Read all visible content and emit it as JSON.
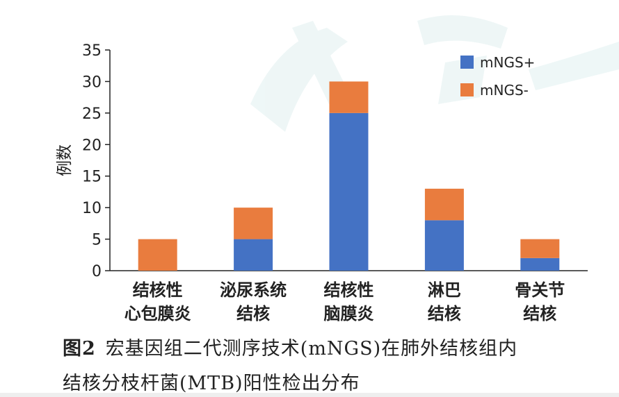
{
  "chart_data": {
    "type": "bar",
    "stacked": true,
    "categories": [
      [
        "结核性",
        "心包膜炎"
      ],
      [
        "泌尿系统",
        "结核"
      ],
      [
        "结核性",
        "脑膜炎"
      ],
      [
        "淋巴",
        "结核"
      ],
      [
        "骨关节",
        "结核"
      ]
    ],
    "series": [
      {
        "name": "mNGS+",
        "color": "#4472c4",
        "values": [
          0,
          5,
          25,
          8,
          2
        ]
      },
      {
        "name": "mNGS-",
        "color": "#e97c3e",
        "values": [
          5,
          5,
          5,
          5,
          3
        ]
      }
    ],
    "ylabel": "例数",
    "ylim": [
      0,
      35
    ],
    "yticks": [
      0,
      5,
      10,
      15,
      20,
      25,
      30,
      35
    ],
    "grid": false,
    "legend_position": "top-right"
  },
  "caption": {
    "label": "图2",
    "line1": "宏基因组二代测序技术(mNGS)在肺外结核组内",
    "line2": "结核分枝杆菌(MTB)阳性检出分布"
  },
  "watermark": "中华"
}
